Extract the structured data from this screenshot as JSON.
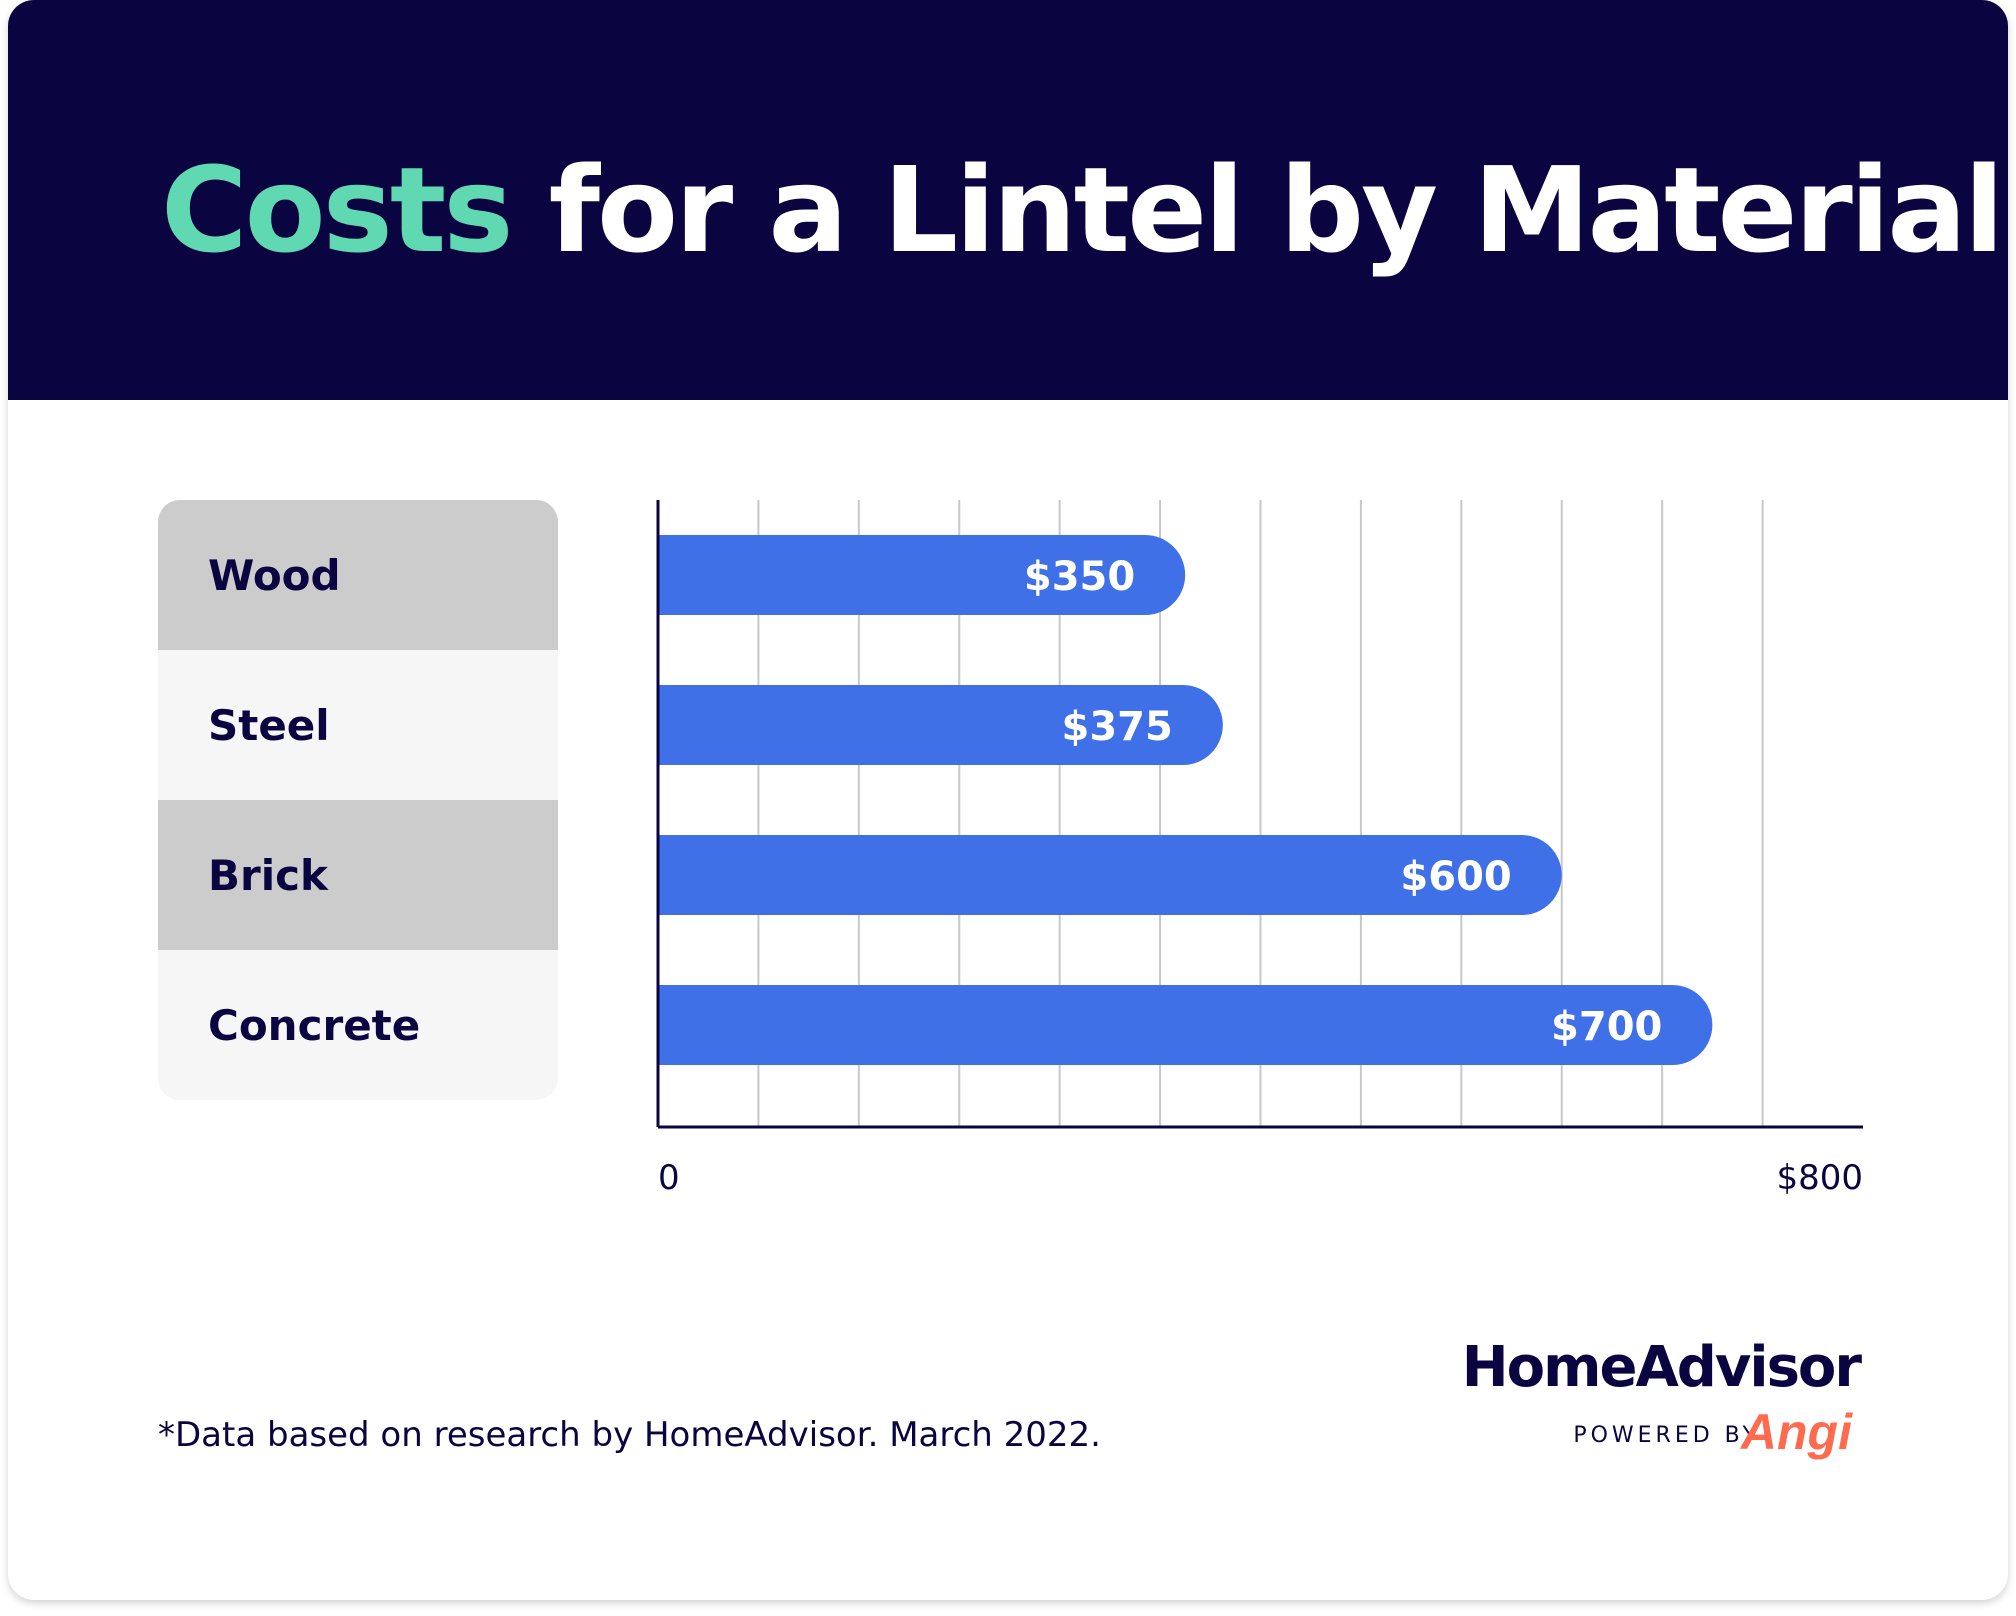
{
  "header": {
    "title_accent": "Costs",
    "title_rest": "for a Lintel by Material"
  },
  "colors": {
    "navy": "#0a0540",
    "accent_green": "#60d9b3",
    "bar_blue": "#4070e8",
    "grid": "#c8c8c8",
    "label_dark": "#cccccc",
    "label_light": "#f6f6f6",
    "angi_orange": "#ff6b4f"
  },
  "chart_data": {
    "type": "bar",
    "orientation": "horizontal",
    "title": "Costs for a Lintel by Material",
    "categories": [
      "Wood",
      "Steel",
      "Brick",
      "Concrete"
    ],
    "values": [
      350,
      375,
      600,
      700
    ],
    "data_labels": [
      "$350",
      "$375",
      "$600",
      "$700"
    ],
    "xlim": [
      0,
      800
    ],
    "x_tick_labels": [
      "0",
      "$800"
    ],
    "gridlines": 12,
    "xlabel": "",
    "ylabel": "",
    "grid": true,
    "legend": "none"
  },
  "footer": {
    "note": "*Data based on research by HomeAdvisor. March 2022.",
    "brand": "HomeAdvisor",
    "powered_by": "POWERED BY",
    "angi": "Angi"
  }
}
